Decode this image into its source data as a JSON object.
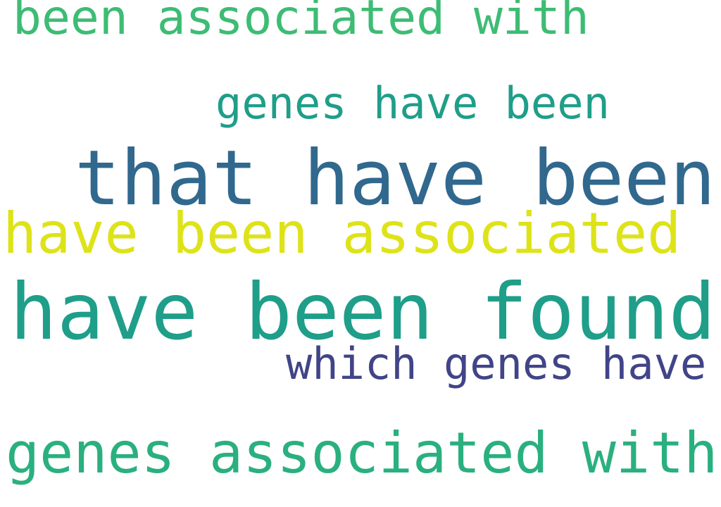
{
  "word_cloud": {
    "phrases": [
      {
        "text": "been associated with",
        "color": "#3dbc74"
      },
      {
        "text": "genes have been",
        "color": "#1f9e89"
      },
      {
        "text": "that have been",
        "color": "#31688e"
      },
      {
        "text": "have been associated",
        "color": "#dde318"
      },
      {
        "text": "have been found",
        "color": "#1f9e89"
      },
      {
        "text": "which genes have",
        "color": "#414487"
      },
      {
        "text": "genes associated with",
        "color": "#2ab07f"
      }
    ]
  }
}
